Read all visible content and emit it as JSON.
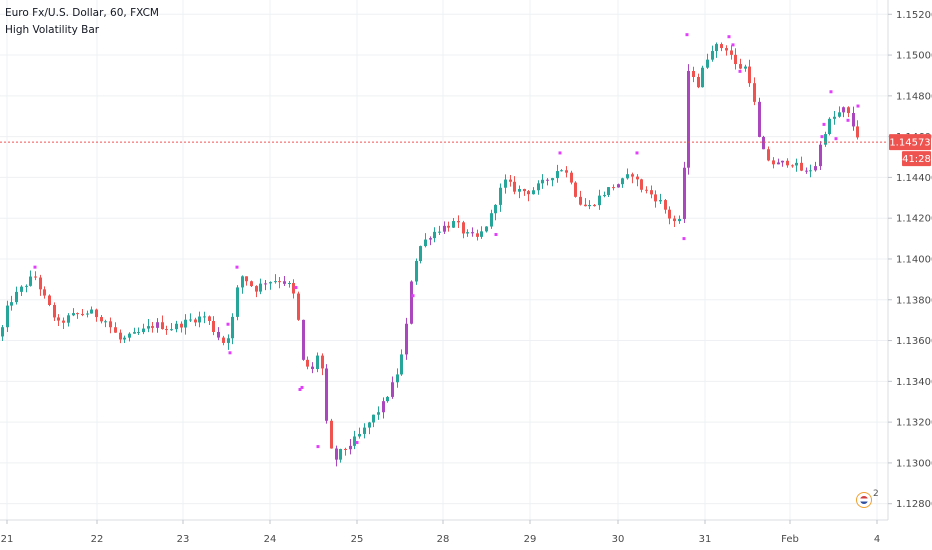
{
  "legend": {
    "symbol_line": "Euro Fx/U.S. Dollar, 60, FXCM",
    "indicator": "High Volatility Bar"
  },
  "current_price": {
    "label": "1.14573",
    "value": 1.14573,
    "countdown": "41:28",
    "color": "#ef5350"
  },
  "notification": {
    "icon": "us-flag-icon",
    "count": "2"
  },
  "colors": {
    "up": "#26a69a",
    "down": "#ef5350",
    "highvol": "#ab47bc",
    "marker": "#e040fb",
    "grid": "#eef0f3"
  },
  "chart_data": {
    "type": "candlestick",
    "title": "",
    "y_ticks": [
      "1.15200",
      "1.15000",
      "1.14800",
      "1.14600",
      "1.14400",
      "1.14200",
      "1.14000",
      "1.13800",
      "1.13600",
      "1.13400",
      "1.13200",
      "1.13000",
      "1.12800"
    ],
    "y_tick_values": [
      1.152,
      1.15,
      1.148,
      1.146,
      1.144,
      1.142,
      1.14,
      1.138,
      1.136,
      1.134,
      1.132,
      1.13,
      1.128
    ],
    "ylim": [
      1.1272,
      1.1527
    ],
    "x_ticks": [
      "21",
      "22",
      "23",
      "24",
      "25",
      "28",
      "29",
      "30",
      "31",
      "Feb",
      "4"
    ],
    "x_tick_pos": [
      7,
      97,
      183,
      270,
      357,
      443,
      530,
      618,
      705,
      790,
      877
    ],
    "grid": true,
    "series_keyframes": [
      [
        0,
        1.1362
      ],
      [
        8,
        1.1378
      ],
      [
        20,
        1.1385
      ],
      [
        34,
        1.1392
      ],
      [
        45,
        1.138
      ],
      [
        58,
        1.1368
      ],
      [
        70,
        1.1372
      ],
      [
        90,
        1.1374
      ],
      [
        105,
        1.137
      ],
      [
        120,
        1.136
      ],
      [
        140,
        1.1364
      ],
      [
        155,
        1.1368
      ],
      [
        170,
        1.1366
      ],
      [
        190,
        1.137
      ],
      [
        205,
        1.1372
      ],
      [
        215,
        1.1364
      ],
      [
        225,
        1.1358
      ],
      [
        232,
        1.137
      ],
      [
        237,
        1.1385
      ],
      [
        242,
        1.1392
      ],
      [
        255,
        1.1385
      ],
      [
        265,
        1.1389
      ],
      [
        280,
        1.139
      ],
      [
        292,
        1.1386
      ],
      [
        298,
        1.137
      ],
      [
        302,
        1.135
      ],
      [
        312,
        1.1345
      ],
      [
        318,
        1.1355
      ],
      [
        322,
        1.1345
      ],
      [
        326,
        1.132
      ],
      [
        333,
        1.13
      ],
      [
        340,
        1.1305
      ],
      [
        352,
        1.131
      ],
      [
        362,
        1.1315
      ],
      [
        372,
        1.1322
      ],
      [
        382,
        1.1328
      ],
      [
        392,
        1.1338
      ],
      [
        400,
        1.1348
      ],
      [
        406,
        1.1366
      ],
      [
        410,
        1.1388
      ],
      [
        418,
        1.1405
      ],
      [
        430,
        1.1412
      ],
      [
        440,
        1.1415
      ],
      [
        455,
        1.1418
      ],
      [
        465,
        1.1412
      ],
      [
        478,
        1.141
      ],
      [
        490,
        1.142
      ],
      [
        498,
        1.1432
      ],
      [
        505,
        1.1438
      ],
      [
        515,
        1.1434
      ],
      [
        530,
        1.1433
      ],
      [
        545,
        1.1438
      ],
      [
        560,
        1.1445
      ],
      [
        570,
        1.144
      ],
      [
        578,
        1.1428
      ],
      [
        588,
        1.1425
      ],
      [
        598,
        1.143
      ],
      [
        610,
        1.1435
      ],
      [
        622,
        1.1438
      ],
      [
        632,
        1.1442
      ],
      [
        640,
        1.1435
      ],
      [
        650,
        1.1432
      ],
      [
        660,
        1.1428
      ],
      [
        670,
        1.142
      ],
      [
        676,
        1.1418
      ],
      [
        682,
        1.1418
      ],
      [
        686,
        1.149
      ],
      [
        692,
        1.1492
      ],
      [
        697,
        1.1484
      ],
      [
        705,
        1.1497
      ],
      [
        712,
        1.1504
      ],
      [
        720,
        1.1504
      ],
      [
        728,
        1.1503
      ],
      [
        736,
        1.1494
      ],
      [
        745,
        1.1494
      ],
      [
        752,
        1.1484
      ],
      [
        758,
        1.146
      ],
      [
        765,
        1.145
      ],
      [
        775,
        1.1446
      ],
      [
        790,
        1.1448
      ],
      [
        805,
        1.1442
      ],
      [
        815,
        1.1446
      ],
      [
        822,
        1.146
      ],
      [
        828,
        1.1467
      ],
      [
        835,
        1.147
      ],
      [
        845,
        1.1474
      ],
      [
        852,
        1.1466
      ],
      [
        860,
        1.1458
      ]
    ],
    "high_vol_indices": [
      33,
      46,
      56,
      60,
      66,
      71,
      74,
      81,
      83,
      91,
      94,
      100,
      116,
      131,
      161,
      162,
      165,
      166,
      171,
      173,
      174,
      179,
      181
    ],
    "markers": [
      [
        35,
        1.1396
      ],
      [
        237,
        1.1396
      ],
      [
        296,
        1.1386
      ],
      [
        230,
        1.1354
      ],
      [
        228,
        1.1368
      ],
      [
        300,
        1.1336
      ],
      [
        302,
        1.1337
      ],
      [
        318,
        1.1308
      ],
      [
        357,
        1.131
      ],
      [
        413,
        1.1382
      ],
      [
        496,
        1.1412
      ],
      [
        560,
        1.1452
      ],
      [
        637,
        1.1452
      ],
      [
        687,
        1.151
      ],
      [
        684,
        1.141
      ],
      [
        729,
        1.1509
      ],
      [
        733,
        1.1505
      ],
      [
        740,
        1.1492
      ],
      [
        822,
        1.146
      ],
      [
        824,
        1.1466
      ],
      [
        831,
        1.1482
      ],
      [
        836,
        1.1459
      ],
      [
        858,
        1.1475
      ],
      [
        848,
        1.1468
      ]
    ]
  }
}
